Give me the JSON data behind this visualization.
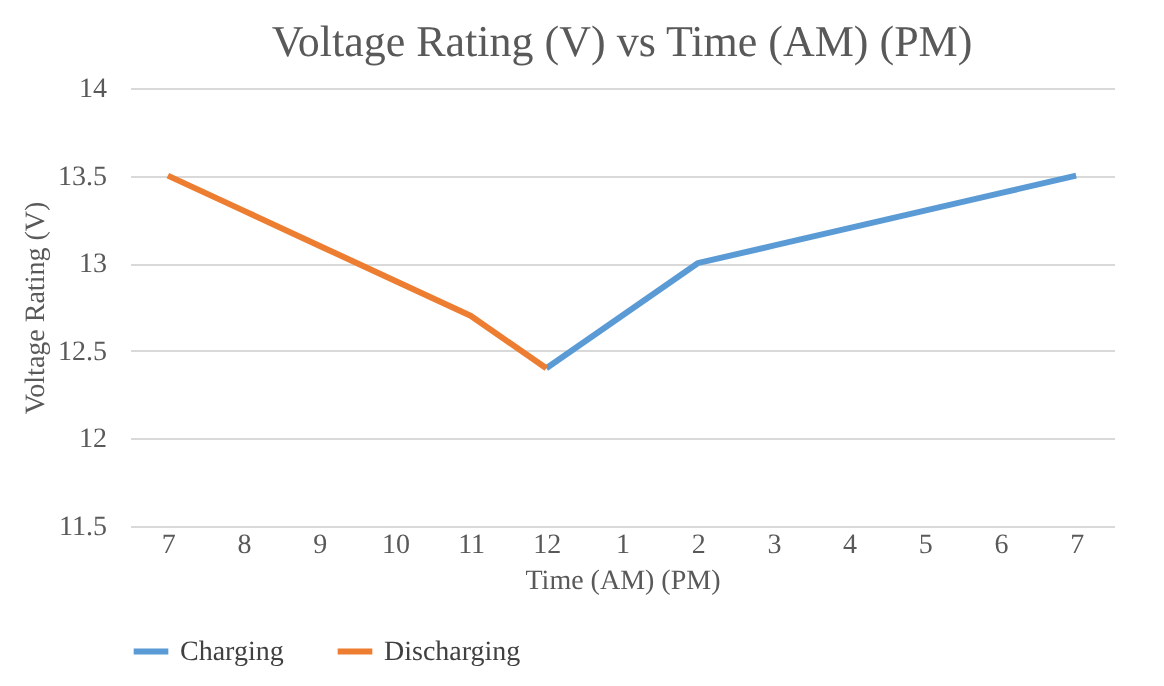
{
  "chart_data": {
    "type": "line",
    "title": "Voltage Rating (V) vs Time (AM) (PM)",
    "xlabel": "Time (AM) (PM)",
    "ylabel": "Voltage Rating (V)",
    "categories": [
      "7",
      "8",
      "9",
      "10",
      "11",
      "12",
      "1",
      "2",
      "3",
      "4",
      "5",
      "6",
      "7"
    ],
    "series": [
      {
        "name": "Charging",
        "color": "#5b9bd5",
        "values": [
          null,
          null,
          null,
          null,
          null,
          12.4,
          12.7,
          13.0,
          13.1,
          13.2,
          13.3,
          13.4,
          13.5
        ]
      },
      {
        "name": "Discharging",
        "color": "#ed7d31",
        "values": [
          13.5,
          13.3,
          13.1,
          12.9,
          12.7,
          12.4,
          null,
          null,
          null,
          null,
          null,
          null,
          null
        ]
      }
    ],
    "ylim": [
      11.5,
      14
    ],
    "yticks": [
      11.5,
      12,
      12.5,
      13,
      13.5,
      14
    ],
    "grid": "y",
    "legend": "bottom",
    "marker": "none",
    "line_style": "solid"
  }
}
